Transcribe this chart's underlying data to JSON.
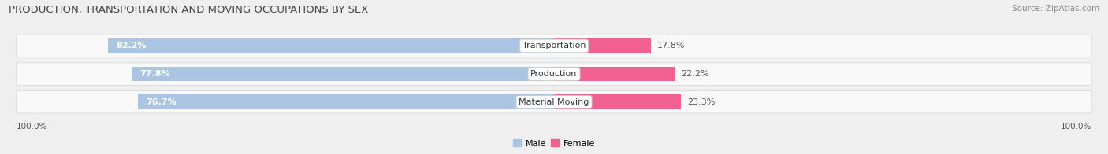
{
  "title": "PRODUCTION, TRANSPORTATION AND MOVING OCCUPATIONS BY SEX",
  "source": "Source: ZipAtlas.com",
  "categories": [
    "Transportation",
    "Production",
    "Material Moving"
  ],
  "male_values": [
    82.2,
    77.8,
    76.7
  ],
  "female_values": [
    17.8,
    22.2,
    23.3
  ],
  "male_color": "#aac4e2",
  "female_color": "#f06090",
  "bg_color": "#efefef",
  "row_bg_color": "#f8f8f8",
  "row_border_color": "#d8d8d8",
  "title_fontsize": 9.5,
  "label_fontsize": 8,
  "axis_label_fontsize": 7.5,
  "source_fontsize": 7.5,
  "legend_fontsize": 8,
  "bar_height": 0.52,
  "figsize": [
    14.06,
    1.96
  ],
  "dpi": 100
}
